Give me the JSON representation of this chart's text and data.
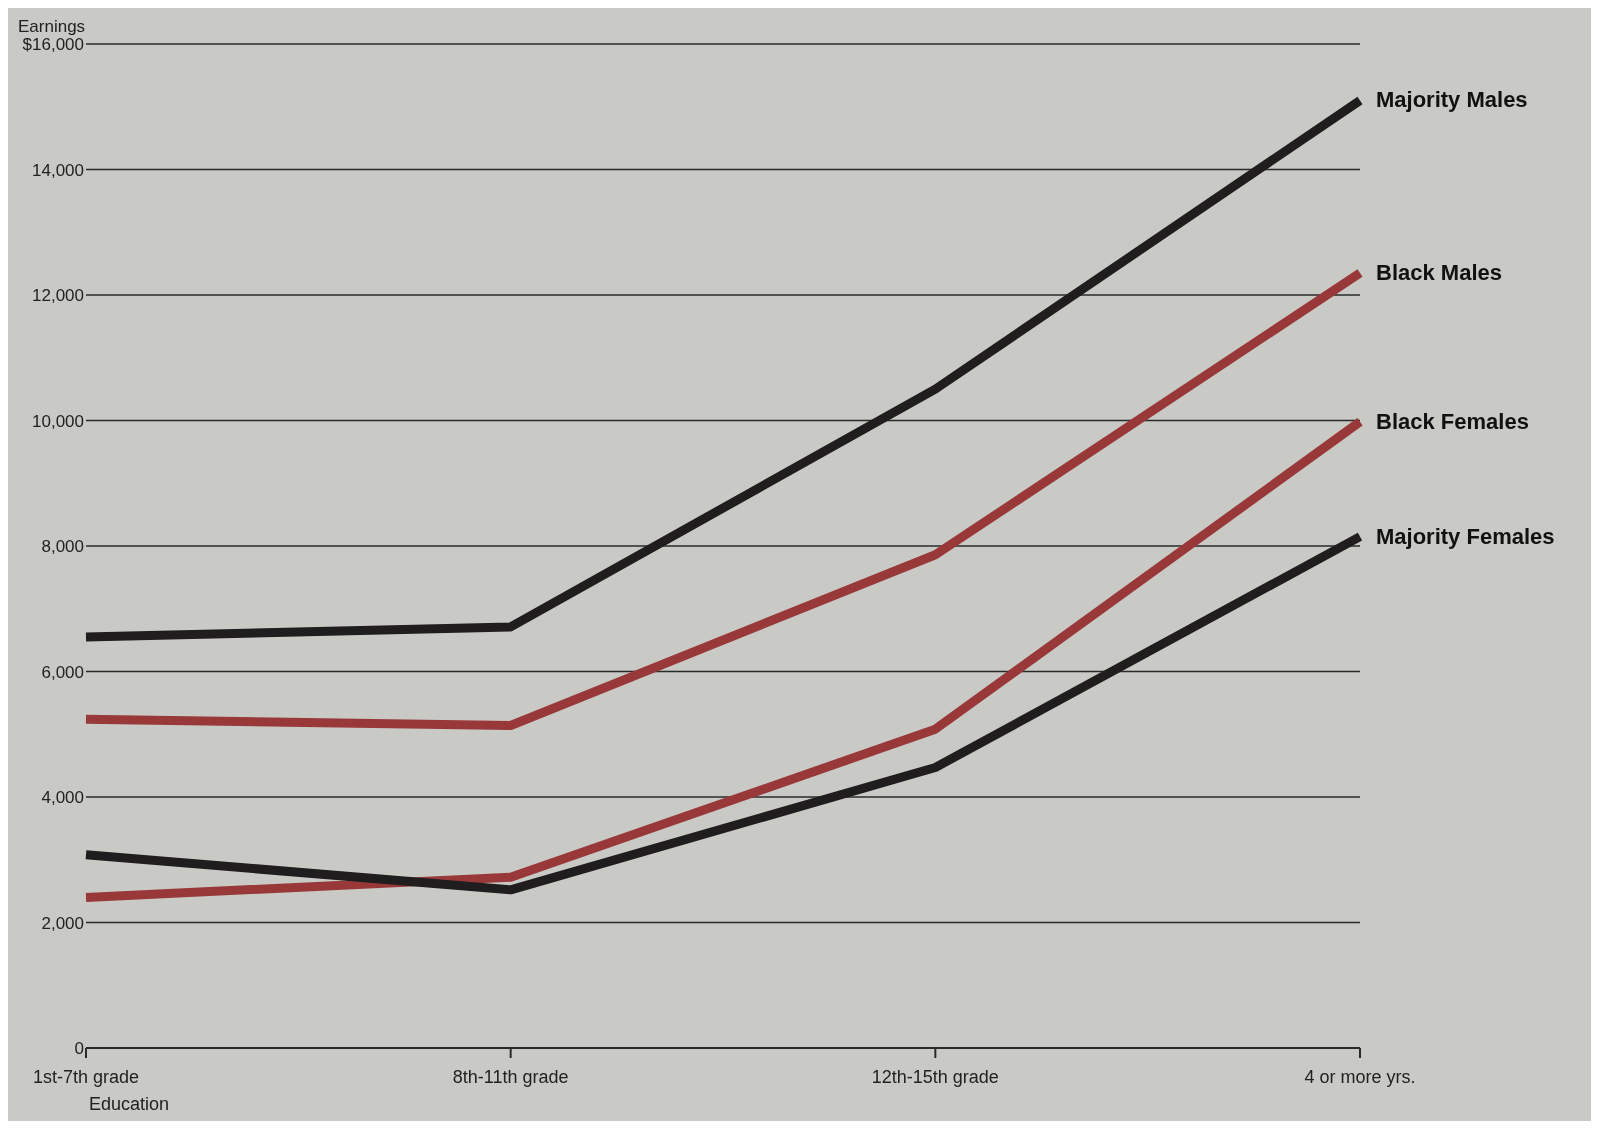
{
  "chart_data": {
    "type": "line",
    "ylabel": "Earnings",
    "xlabel": "Education",
    "categories": [
      "1st-7th grade",
      "8th-11th grade",
      "12th-15th grade",
      "4 or more yrs."
    ],
    "series": [
      {
        "name": "Majority Males",
        "color": "#1f1d1e",
        "values": [
          6550,
          6710,
          10500,
          15100
        ]
      },
      {
        "name": "Black Males",
        "color": "#983839",
        "values": [
          5240,
          5140,
          7860,
          12350
        ]
      },
      {
        "name": "Black Females",
        "color": "#983839",
        "values": [
          2400,
          2720,
          5080,
          9980
        ]
      },
      {
        "name": "Majority Females",
        "color": "#1f1d1e",
        "values": [
          3080,
          2520,
          4470,
          8150
        ]
      }
    ],
    "ylim": [
      0,
      16000
    ],
    "yticks": [
      0,
      {
        "value": 2000,
        "label": "2,000"
      },
      {
        "value": 4000,
        "label": "4,000"
      },
      {
        "value": 6000,
        "label": "6,000"
      },
      {
        "value": 8000,
        "label": "8,000"
      },
      {
        "value": 10000,
        "label": "10,000"
      },
      {
        "value": 12000,
        "label": "12,000"
      },
      {
        "value": 14000,
        "label": "14,000"
      },
      {
        "value": 16000,
        "label": "$16,000"
      }
    ],
    "grid": "y",
    "legend": false,
    "marker": "none",
    "line_style": "solid"
  }
}
